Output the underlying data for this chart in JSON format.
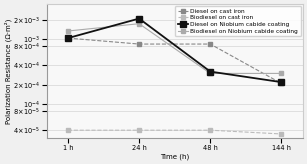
{
  "x_labels": [
    "1 h",
    "24 h",
    "48 h",
    "144 h"
  ],
  "x_values": [
    0,
    1,
    2,
    3
  ],
  "series": [
    {
      "label": "Diesel on cast iron",
      "y": [
        0.00105,
        0.00085,
        0.00085,
        0.00021
      ],
      "color": "#888888",
      "marker": "s",
      "linestyle": "--",
      "linewidth": 0.8,
      "markersize": 3,
      "zorder": 2
    },
    {
      "label": "Biodiesel on cast iron",
      "y": [
        4e-05,
        4e-05,
        4e-05,
        3.5e-05
      ],
      "color": "#bbbbbb",
      "marker": "s",
      "linestyle": "--",
      "linewidth": 0.8,
      "markersize": 3,
      "zorder": 2
    },
    {
      "label": "Diesel on Niobium cabide coating",
      "y": [
        0.00105,
        0.0021,
        0.00032,
        0.00022
      ],
      "color": "#111111",
      "marker": "s",
      "linestyle": "-",
      "linewidth": 1.3,
      "markersize": 4,
      "zorder": 3
    },
    {
      "label": "Biodiesel on Niobium cabide coating",
      "y": [
        0.00135,
        0.00175,
        0.0003,
        0.0003
      ],
      "color": "#aaaaaa",
      "marker": "s",
      "linestyle": "-",
      "linewidth": 0.8,
      "markersize": 3,
      "zorder": 2
    }
  ],
  "ylabel": "Polarization Resistance (Ω·m²)",
  "xlabel": "Time (h)",
  "ylim_low": 3e-05,
  "ylim_high": 0.0035,
  "ytick_values": [
    4e-05,
    8e-05,
    0.0001,
    0.0002,
    0.0004,
    0.0008,
    0.001,
    0.002
  ],
  "ytick_labels": [
    "4×10⁻⁵",
    "8×10⁻⁵",
    "1×10⁻⁴",
    "2×10⁻⁴",
    "4×10⁻⁴",
    "8×10⁻⁴",
    "1×10⁻³",
    "2×10⁻³"
  ],
  "background_color": "#f0f0f0",
  "plot_bg_color": "#f8f8f8",
  "legend_fontsize": 4.2,
  "axis_label_fontsize": 5.0,
  "tick_fontsize": 4.8,
  "title_fontsize": 5.5
}
